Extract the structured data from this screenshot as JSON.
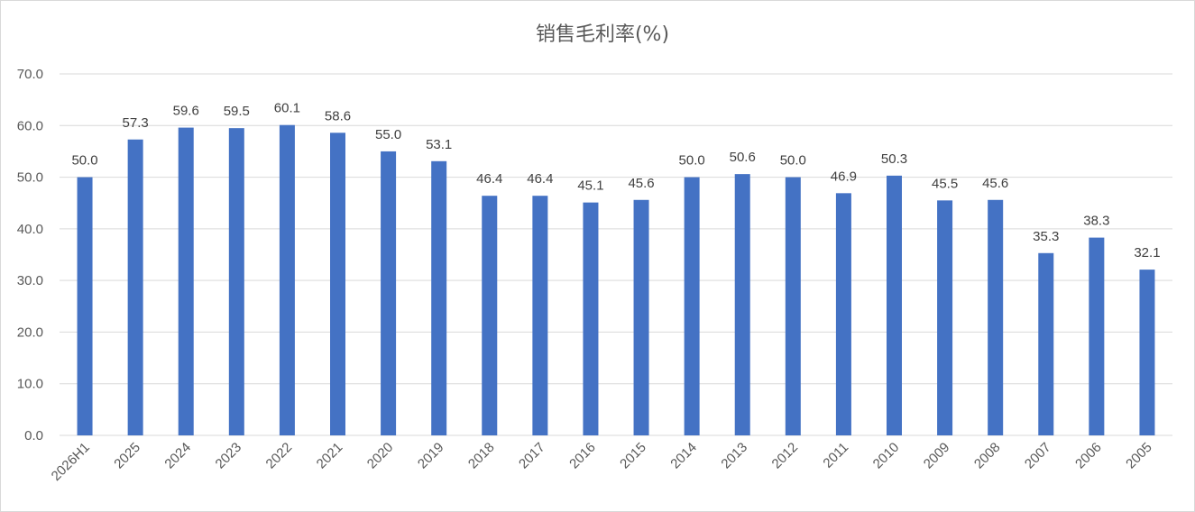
{
  "chart_data": {
    "type": "bar",
    "title": "销售毛利率(%)",
    "xlabel": "",
    "ylabel": "",
    "ylim": [
      0,
      70
    ],
    "yticks": [
      "0.0",
      "10.0",
      "20.0",
      "30.0",
      "40.0",
      "50.0",
      "60.0",
      "70.0"
    ],
    "grid": true,
    "legend": "none",
    "bar_color": "#4472C4",
    "categories": [
      "2026H1",
      "2025",
      "2024",
      "2023",
      "2022",
      "2021",
      "2020",
      "2019",
      "2018",
      "2017",
      "2016",
      "2015",
      "2014",
      "2013",
      "2012",
      "2011",
      "2010",
      "2009",
      "2008",
      "2007",
      "2006",
      "2005"
    ],
    "values": [
      50.0,
      57.3,
      59.6,
      59.5,
      60.1,
      58.6,
      55.0,
      53.1,
      46.4,
      46.4,
      45.1,
      45.6,
      50.0,
      50.6,
      50.0,
      46.9,
      50.3,
      45.5,
      45.6,
      35.3,
      38.3,
      32.1
    ],
    "data_labels": [
      "50.0",
      "57.3",
      "59.6",
      "59.5",
      "60.1",
      "58.6",
      "55.0",
      "53.1",
      "46.4",
      "46.4",
      "45.1",
      "45.6",
      "50.0",
      "50.6",
      "50.0",
      "46.9",
      "50.3",
      "45.5",
      "45.6",
      "35.3",
      "38.3",
      "32.1"
    ]
  }
}
